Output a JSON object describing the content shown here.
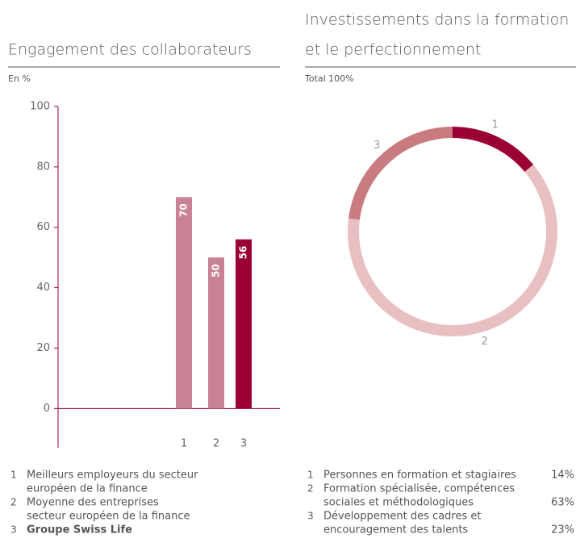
{
  "chart_data": [
    {
      "type": "bar",
      "title": "Engagement des collaborateurs",
      "subtitle": "En %",
      "categories": [
        "1",
        "2",
        "3"
      ],
      "values": [
        70,
        50,
        56
      ],
      "colors": [
        "#c98195",
        "#c98195",
        "#9b0034"
      ],
      "ylim": [
        -13,
        100
      ],
      "yticks": [
        0,
        20,
        40,
        60,
        80,
        100
      ],
      "legend": [
        {
          "lines": [
            "Meilleurs employeurs du secteur",
            "européen de la finance"
          ],
          "bold": false
        },
        {
          "lines": [
            "Moyenne des entreprises",
            "secteur européen de la finance"
          ],
          "bold": false
        },
        {
          "lines": [
            "Groupe Swiss Life"
          ],
          "bold": true
        }
      ]
    },
    {
      "type": "pie",
      "title": [
        "Investissements dans la formation",
        "et le perfectionnement"
      ],
      "subtitle": "Total 100%",
      "categories": [
        "1",
        "2",
        "3"
      ],
      "values": [
        14,
        63,
        23
      ],
      "value_labels": [
        "14%",
        "63%",
        "23%"
      ],
      "colors": [
        "#9b0034",
        "#e8c0c2",
        "#c97b80"
      ],
      "legend": [
        {
          "lines": [
            "Personnes en formation et stagiaires"
          ]
        },
        {
          "lines": [
            "Formation spécialisée, compétences",
            "sociales et méthodologiques"
          ]
        },
        {
          "lines": [
            "Développement des cadres et",
            "encouragement des talents"
          ]
        }
      ]
    }
  ]
}
